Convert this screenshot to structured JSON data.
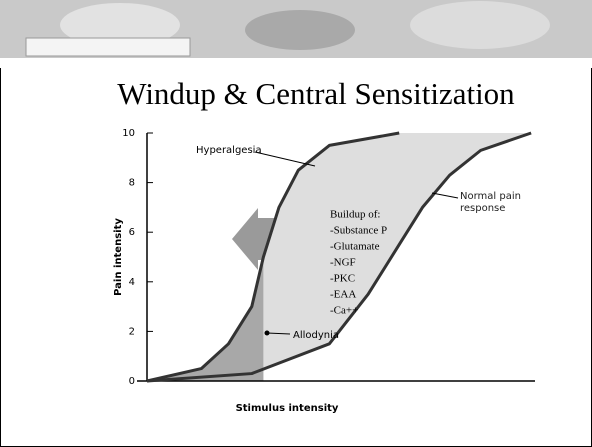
{
  "title": "Windup & Central Sensitization",
  "chart_data": {
    "type": "line",
    "x_label": "Stimulus intensity",
    "y_label": "Pain intensity",
    "xlim": [
      0,
      100
    ],
    "ylim": [
      0,
      10
    ],
    "yticks": [
      0,
      2,
      4,
      6,
      8,
      10
    ],
    "series": [
      {
        "name": "Hyperalgesia",
        "color": "#333333",
        "x": [
          0,
          14,
          21,
          27,
          30,
          34,
          39,
          47,
          65
        ],
        "values": [
          0,
          0.5,
          1.5,
          3,
          5,
          7,
          8.5,
          9.5,
          10
        ]
      },
      {
        "name": "Normal pain response",
        "color": "#333333",
        "x": [
          0,
          27,
          47,
          57,
          65,
          71,
          78,
          86,
          99
        ],
        "values": [
          0,
          0.3,
          1.5,
          3.5,
          5.5,
          7,
          8.3,
          9.3,
          10
        ]
      }
    ],
    "annotations": {
      "allodynia": "Allodynia",
      "buildup_heading": "Buildup of:",
      "buildup_items": [
        "-Substance P",
        "-Glutamate",
        "-NGF",
        "-PKC",
        "-EAA",
        "-Ca++"
      ]
    }
  }
}
